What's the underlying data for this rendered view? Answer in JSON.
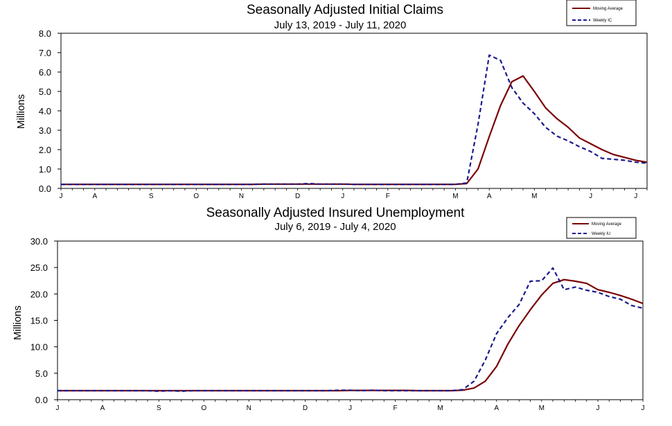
{
  "chart_data": [
    {
      "type": "line",
      "title": "Seasonally Adjusted Initial Claims",
      "subtitle": "July 13, 2019 - July 11, 2020",
      "ylabel": "Millions",
      "xlabel": "",
      "ylim": [
        0,
        8
      ],
      "yticks": [
        "0.0",
        "1.0",
        "2.0",
        "3.0",
        "4.0",
        "5.0",
        "6.0",
        "7.0",
        "8.0"
      ],
      "xlim": [
        0,
        52
      ],
      "xtick_labels": [
        {
          "label": "J",
          "week": 0
        },
        {
          "label": "A",
          "week": 3
        },
        {
          "label": "S",
          "week": 8
        },
        {
          "label": "O",
          "week": 12
        },
        {
          "label": "N",
          "week": 16
        },
        {
          "label": "D",
          "week": 21
        },
        {
          "label": "J",
          "week": 25
        },
        {
          "label": "F",
          "week": 29
        },
        {
          "label": "M",
          "week": 35
        },
        {
          "label": "A",
          "week": 38
        },
        {
          "label": "M",
          "week": 42
        },
        {
          "label": "J",
          "week": 47
        },
        {
          "label": "J",
          "week": 51
        }
      ],
      "grid": false,
      "legend_position": "top-right",
      "series": [
        {
          "name": "Moving Average",
          "color": "#7a0000",
          "style": "solid",
          "x": [
            0,
            1,
            2,
            3,
            4,
            5,
            6,
            7,
            8,
            9,
            10,
            11,
            12,
            13,
            14,
            15,
            16,
            17,
            18,
            19,
            20,
            21,
            22,
            23,
            24,
            25,
            26,
            27,
            28,
            29,
            30,
            31,
            32,
            33,
            34,
            35,
            36,
            37,
            38,
            39,
            40,
            41,
            42,
            43,
            44,
            45,
            46,
            47,
            48,
            49,
            50,
            51,
            52
          ],
          "values": [
            0.21,
            0.21,
            0.21,
            0.21,
            0.21,
            0.21,
            0.21,
            0.21,
            0.21,
            0.21,
            0.21,
            0.21,
            0.21,
            0.21,
            0.21,
            0.21,
            0.21,
            0.21,
            0.22,
            0.22,
            0.22,
            0.22,
            0.22,
            0.22,
            0.22,
            0.22,
            0.21,
            0.21,
            0.21,
            0.21,
            0.21,
            0.21,
            0.21,
            0.21,
            0.21,
            0.21,
            0.25,
            1.0,
            2.67,
            4.27,
            5.5,
            5.8,
            5.0,
            4.15,
            3.6,
            3.15,
            2.6,
            2.3,
            2.0,
            1.75,
            1.6,
            1.45,
            1.35
          ]
        },
        {
          "name": "Weekly IC",
          "color": "#1a1a8c",
          "style": "dashed",
          "x": [
            0,
            1,
            2,
            3,
            4,
            5,
            6,
            7,
            8,
            9,
            10,
            11,
            12,
            13,
            14,
            15,
            16,
            17,
            18,
            19,
            20,
            21,
            22,
            23,
            24,
            25,
            26,
            27,
            28,
            29,
            30,
            31,
            32,
            33,
            34,
            35,
            36,
            37,
            38,
            39,
            40,
            41,
            42,
            43,
            44,
            45,
            46,
            47,
            48,
            49,
            50,
            51,
            52
          ],
          "values": [
            0.21,
            0.21,
            0.21,
            0.21,
            0.21,
            0.21,
            0.21,
            0.21,
            0.21,
            0.21,
            0.21,
            0.21,
            0.21,
            0.21,
            0.21,
            0.21,
            0.21,
            0.21,
            0.22,
            0.22,
            0.22,
            0.22,
            0.25,
            0.22,
            0.22,
            0.22,
            0.21,
            0.21,
            0.21,
            0.21,
            0.21,
            0.21,
            0.21,
            0.21,
            0.21,
            0.21,
            0.28,
            3.3,
            6.87,
            6.6,
            5.2,
            4.4,
            3.85,
            3.15,
            2.7,
            2.45,
            2.15,
            1.9,
            1.55,
            1.5,
            1.45,
            1.35,
            1.3
          ]
        }
      ]
    },
    {
      "type": "line",
      "title": "Seasonally Adjusted Insured Unemployment",
      "subtitle": "July 6, 2019 - July 4, 2020",
      "ylabel": "Millions",
      "xlabel": "",
      "ylim": [
        0,
        30
      ],
      "yticks": [
        "0.0",
        "5.0",
        "10.0",
        "15.0",
        "20.0",
        "25.0",
        "30.0"
      ],
      "xlim": [
        0,
        52
      ],
      "xtick_labels": [
        {
          "label": "J",
          "week": 0
        },
        {
          "label": "A",
          "week": 4
        },
        {
          "label": "S",
          "week": 9
        },
        {
          "label": "O",
          "week": 13
        },
        {
          "label": "N",
          "week": 17
        },
        {
          "label": "D",
          "week": 22
        },
        {
          "label": "J",
          "week": 26
        },
        {
          "label": "F",
          "week": 30
        },
        {
          "label": "M",
          "week": 34
        },
        {
          "label": "A",
          "week": 39
        },
        {
          "label": "M",
          "week": 43
        },
        {
          "label": "J",
          "week": 48
        },
        {
          "label": "J",
          "week": 52
        }
      ],
      "grid": false,
      "legend_position": "top-right",
      "series": [
        {
          "name": "Moving Average",
          "color": "#7a0000",
          "style": "solid",
          "x": [
            0,
            1,
            2,
            3,
            4,
            5,
            6,
            7,
            8,
            9,
            10,
            11,
            12,
            13,
            14,
            15,
            16,
            17,
            18,
            19,
            20,
            21,
            22,
            23,
            24,
            25,
            26,
            27,
            28,
            29,
            30,
            31,
            32,
            33,
            34,
            35,
            36,
            37,
            38,
            39,
            40,
            41,
            42,
            43,
            44,
            45,
            46,
            47,
            48,
            49,
            50,
            51,
            52
          ],
          "values": [
            1.7,
            1.7,
            1.7,
            1.7,
            1.7,
            1.7,
            1.7,
            1.7,
            1.7,
            1.7,
            1.7,
            1.7,
            1.7,
            1.7,
            1.7,
            1.7,
            1.7,
            1.7,
            1.7,
            1.7,
            1.7,
            1.7,
            1.7,
            1.7,
            1.7,
            1.7,
            1.75,
            1.75,
            1.75,
            1.75,
            1.75,
            1.75,
            1.7,
            1.7,
            1.7,
            1.7,
            1.8,
            2.2,
            3.5,
            6.3,
            10.5,
            14.0,
            17.0,
            19.8,
            22.0,
            22.7,
            22.4,
            22.0,
            20.8,
            20.3,
            19.7,
            19.0,
            18.2
          ]
        },
        {
          "name": "Weekly IU",
          "color": "#1a1a8c",
          "style": "dashed",
          "x": [
            0,
            1,
            2,
            3,
            4,
            5,
            6,
            7,
            8,
            9,
            10,
            11,
            12,
            13,
            14,
            15,
            16,
            17,
            18,
            19,
            20,
            21,
            22,
            23,
            24,
            25,
            26,
            27,
            28,
            29,
            30,
            31,
            32,
            33,
            34,
            35,
            36,
            37,
            38,
            39,
            40,
            41,
            42,
            43,
            44,
            45,
            46,
            47,
            48,
            49,
            50,
            51,
            52
          ],
          "values": [
            1.7,
            1.7,
            1.7,
            1.7,
            1.7,
            1.7,
            1.7,
            1.7,
            1.7,
            1.6,
            1.7,
            1.6,
            1.7,
            1.7,
            1.7,
            1.7,
            1.7,
            1.7,
            1.7,
            1.7,
            1.7,
            1.7,
            1.7,
            1.7,
            1.7,
            1.8,
            1.8,
            1.7,
            1.8,
            1.7,
            1.7,
            1.7,
            1.7,
            1.7,
            1.7,
            1.7,
            1.9,
            3.5,
            7.5,
            12.5,
            15.5,
            18.0,
            22.4,
            22.5,
            24.9,
            20.8,
            21.3,
            20.7,
            20.3,
            19.5,
            19.0,
            17.8,
            17.3
          ]
        }
      ]
    }
  ]
}
